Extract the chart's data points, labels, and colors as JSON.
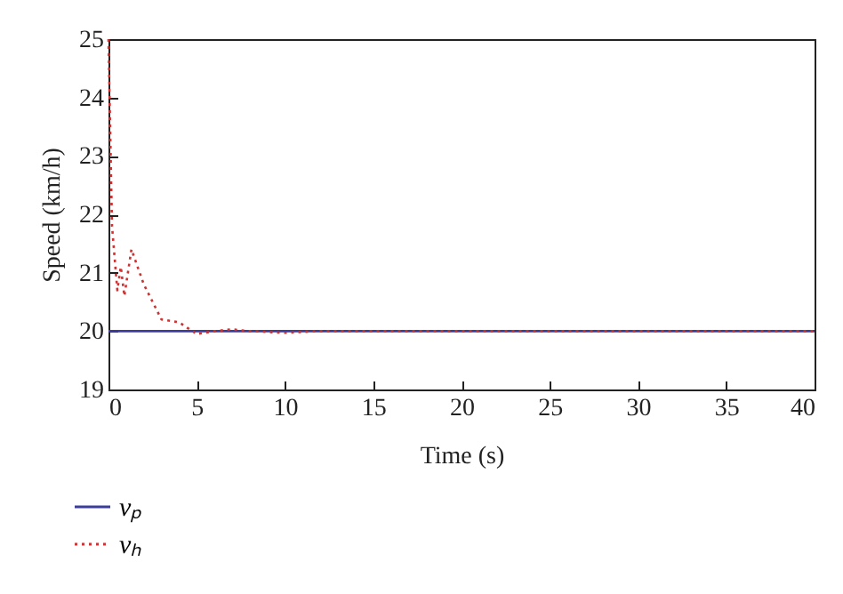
{
  "chart_data": {
    "type": "line",
    "xlabel": "Time (s)",
    "ylabel": "Speed (km/h)",
    "xlim": [
      0,
      40
    ],
    "xticks": [
      0,
      5,
      10,
      15,
      20,
      25,
      30,
      35,
      40
    ],
    "ylim": [
      19,
      25
    ],
    "yticks": [
      19,
      20,
      21,
      22,
      23,
      24,
      25
    ],
    "grid": false,
    "legend": "bottom left",
    "series": [
      {
        "name": "vₚ",
        "color": "#3c3c9c",
        "line_style": "solid",
        "x": [
          0,
          40
        ],
        "values": [
          20,
          20
        ]
      },
      {
        "name": "vₕ",
        "color": "#cc3333",
        "line_style": "dotted",
        "x": [
          0,
          0.2,
          0.5,
          0.7,
          0.9,
          1.3,
          2,
          3,
          4,
          5,
          6,
          7,
          8,
          10,
          12,
          40
        ],
        "values": [
          25,
          21.8,
          20.7,
          21.1,
          20.6,
          21.4,
          20.8,
          20.2,
          20.15,
          19.95,
          20,
          20.03,
          20,
          19.97,
          20,
          20
        ]
      }
    ]
  }
}
